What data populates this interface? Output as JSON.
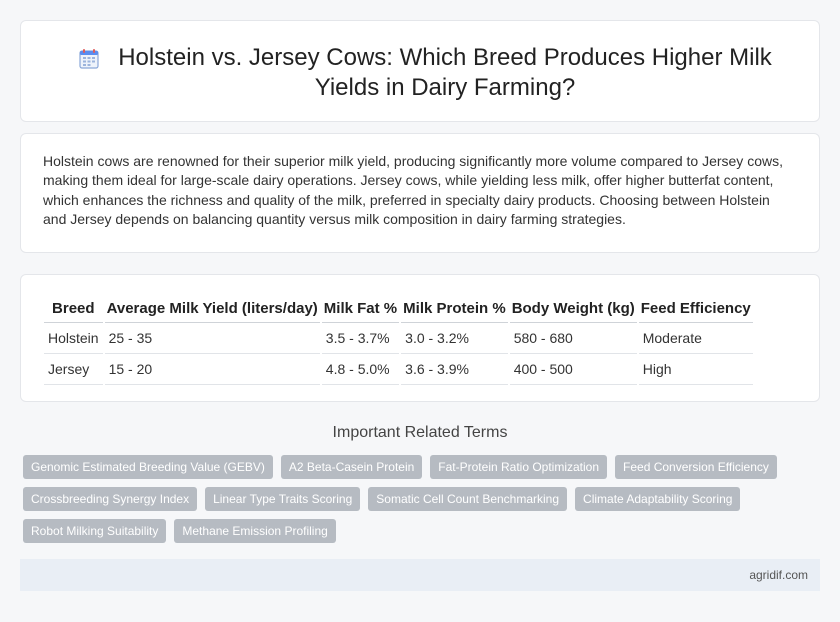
{
  "header": {
    "title": "Holstein vs. Jersey Cows: Which Breed Produces Higher Milk Yields in Dairy Farming?",
    "icon": "calendar-icon"
  },
  "intro": {
    "text": "Holstein cows are renowned for their superior milk yield, producing significantly more volume compared to Jersey cows, making them ideal for large-scale dairy operations. Jersey cows, while yielding less milk, offer higher butterfat content, which enhances the richness and quality of the milk, preferred in specialty dairy products. Choosing between Holstein and Jersey depends on balancing quantity versus milk composition in dairy farming strategies."
  },
  "table": {
    "headers": [
      "Breed",
      "Average Milk Yield (liters/day)",
      "Milk Fat %",
      "Milk Protein %",
      "Body Weight (kg)",
      "Feed Efficiency"
    ],
    "rows": [
      [
        "Holstein",
        "25 - 35",
        "3.5 - 3.7%",
        "3.0 - 3.2%",
        "580 - 680",
        "Moderate"
      ],
      [
        "Jersey",
        "15 - 20",
        "4.8 - 5.0%",
        "3.6 - 3.9%",
        "400 - 500",
        "High"
      ]
    ]
  },
  "related": {
    "title": "Important Related Terms",
    "tags": [
      "Genomic Estimated Breeding Value (GEBV)",
      "A2 Beta-Casein Protein",
      "Fat-Protein Ratio Optimization",
      "Feed Conversion Efficiency",
      "Crossbreeding Synergy Index",
      "Linear Type Traits Scoring",
      "Somatic Cell Count Benchmarking",
      "Climate Adaptability Scoring",
      "Robot Milking Suitability",
      "Methane Emission Profiling"
    ]
  },
  "footer": {
    "site": "agridif.com"
  },
  "colors": {
    "tag_bg": "#b6bbc2",
    "footer_bg": "#e9eef5",
    "icon_accent": "#5b8def"
  }
}
